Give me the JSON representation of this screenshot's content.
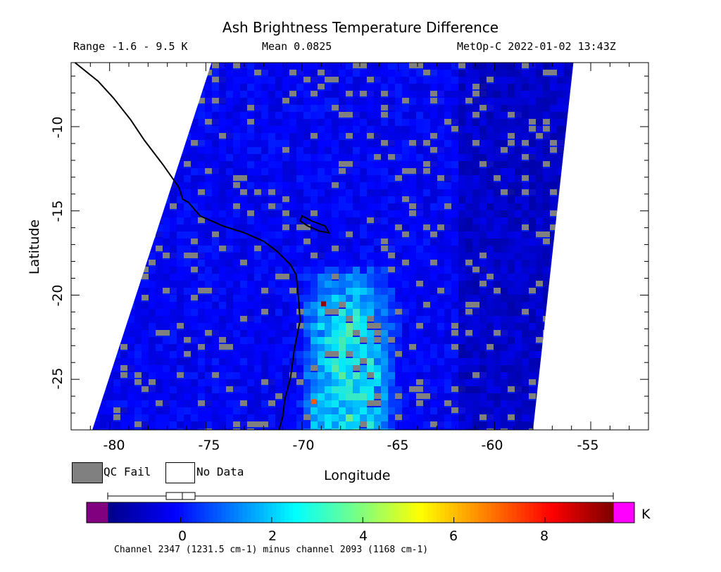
{
  "title": "Ash Brightness Temperature Difference",
  "range_text": "Range -1.6 - 9.5 K",
  "mean_text": "Mean 0.0825",
  "satellite_text": "MetOp-C 2022-01-02 13:43Z",
  "xlabel": "Longitude",
  "ylabel": "Latitude",
  "x_ticks": [
    "-80",
    "-75",
    "-70",
    "-65",
    "-60",
    "-55"
  ],
  "y_ticks": [
    "-10",
    "-15",
    "-20",
    "-25"
  ],
  "legend": {
    "qc_fail": "QC Fail",
    "no_data": "No Data"
  },
  "colorbar": {
    "unit": "K",
    "ticks": [
      "0",
      "2",
      "4",
      "6",
      "8"
    ],
    "range": [
      -1.6,
      9.5
    ],
    "caption": "Channel 2347 (1231.5 cm-1) minus channel 2093 (1168 cm-1)"
  },
  "colors": {
    "background": "#0022ee",
    "qc_fail": "#808080",
    "coastline": "#000000",
    "under": "#800080",
    "over": "#ff00ff"
  },
  "map_data": {
    "lon_range": [
      -82,
      -52
    ],
    "lat_range": [
      -28,
      -6.2
    ],
    "swath_corners_lonlat": [
      [
        -74.7,
        -6.2
      ],
      [
        -55.9,
        -6.2
      ],
      [
        -58,
        -28
      ],
      [
        -80.9,
        -28
      ]
    ],
    "plume": {
      "lon_range": [
        -70.5,
        -65
      ],
      "lat_range": [
        -28,
        -17
      ],
      "peak_btd_k": 3.5
    },
    "hot_pixels": [
      {
        "lon": -68.9,
        "lat": -20.5,
        "btd_k": 9.3
      },
      {
        "lon": -69.4,
        "lat": -26.3,
        "btd_k": 7.2
      }
    ]
  }
}
